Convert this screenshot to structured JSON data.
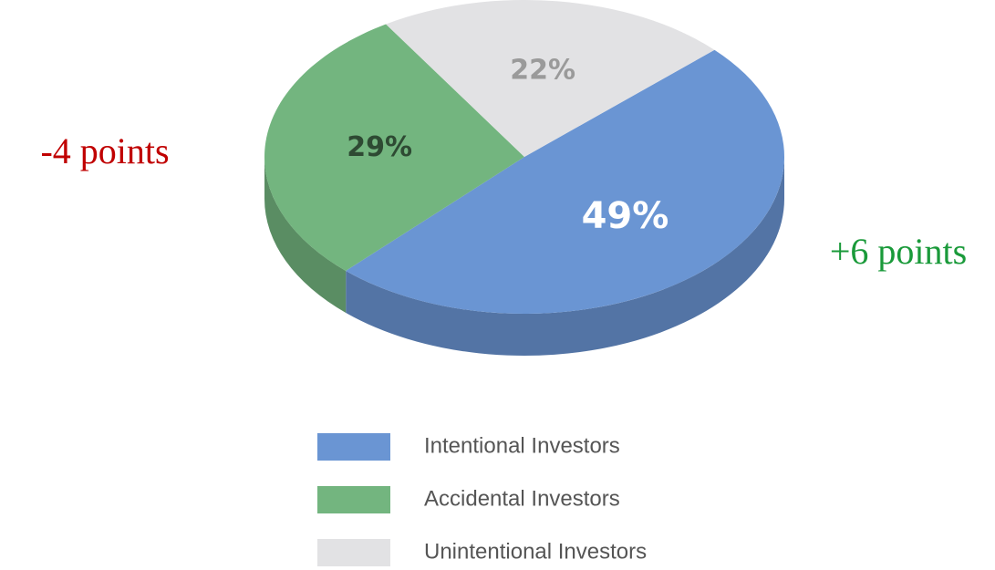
{
  "chart_data": {
    "type": "pie",
    "categories": [
      "Intentional Investors",
      "Accidental Investors",
      "Unintentional Investors"
    ],
    "values": [
      49,
      29,
      22
    ],
    "value_labels": [
      "49%",
      "29%",
      "22%"
    ],
    "colors": [
      "#6a95d3",
      "#73b57f",
      "#e2e2e4"
    ],
    "annotations": [
      {
        "text": "-4 points",
        "color": "#c00000"
      },
      {
        "text": "+6 points",
        "color": "#1a9a3a"
      }
    ]
  }
}
